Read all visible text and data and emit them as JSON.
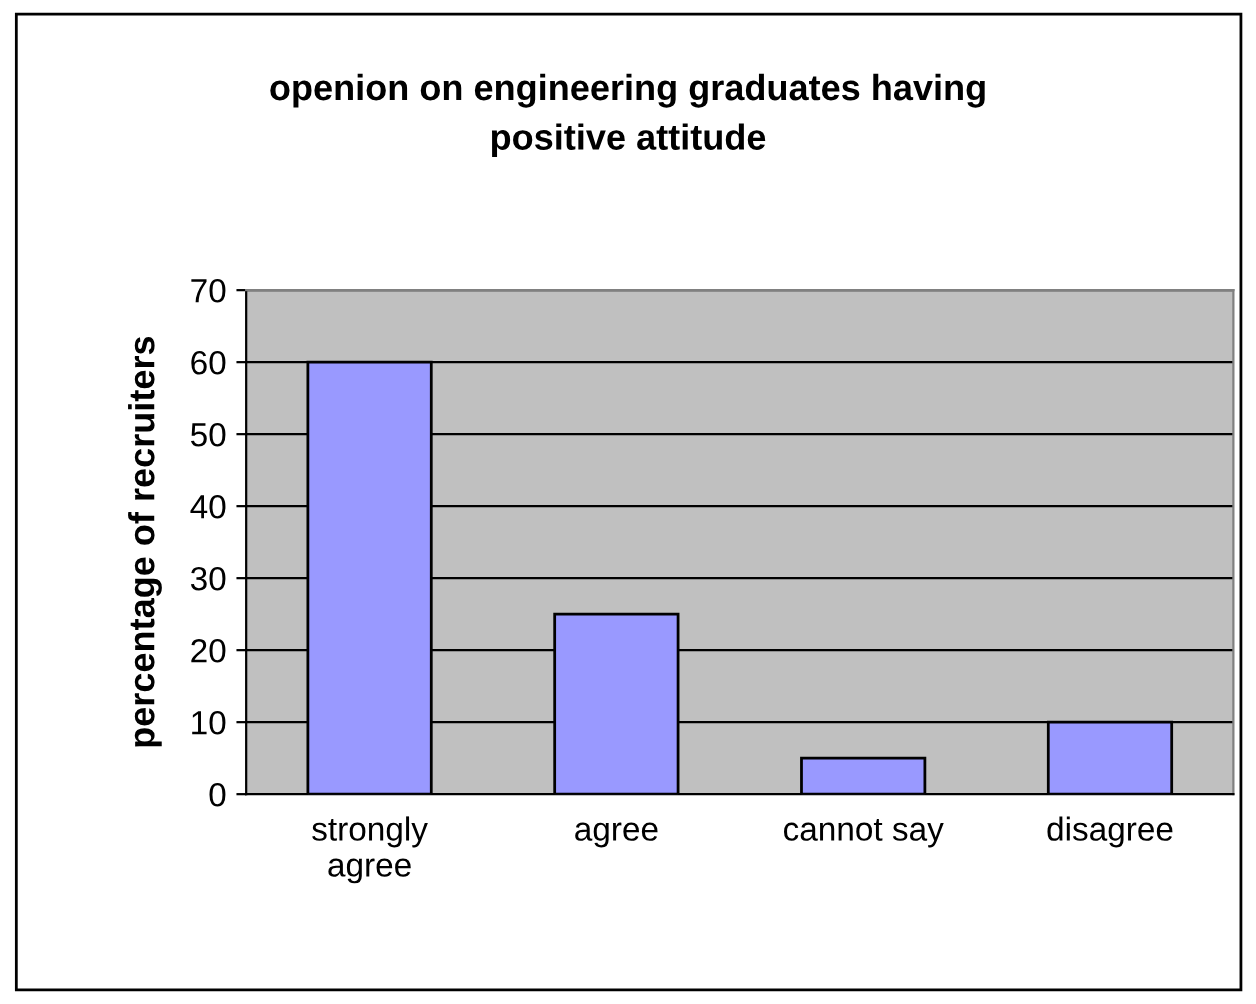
{
  "chart_data": {
    "type": "bar",
    "title": "openion on engineering graduates having\npositive attitude",
    "ylabel": "percentage of recruiters",
    "categories": [
      "strongly\nagree",
      "agree",
      "cannot say",
      "disagree"
    ],
    "values": [
      60,
      25,
      5,
      10
    ],
    "color": "#9999ff",
    "ylim": [
      0,
      70
    ],
    "yticks": [
      0,
      10,
      20,
      30,
      40,
      50,
      60,
      70
    ],
    "grid": "y",
    "legend": false
  }
}
